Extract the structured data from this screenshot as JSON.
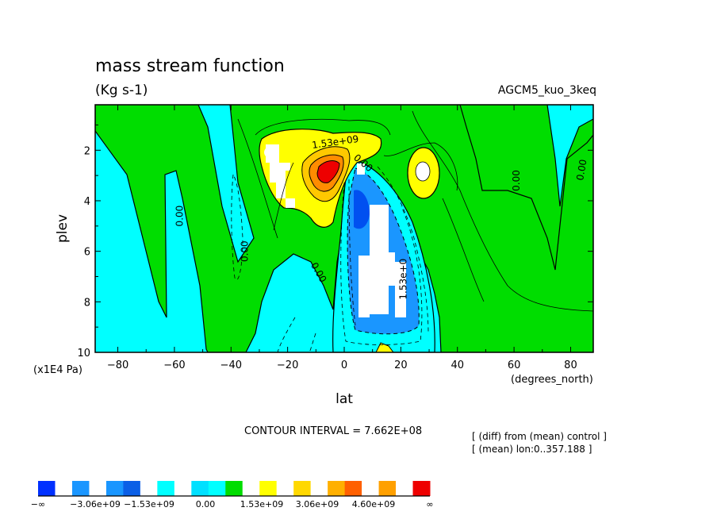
{
  "chart_data": {
    "type": "contour",
    "title": "mass stream function",
    "units": "(Kg s-1)",
    "dataset": "AGCM5_kuo_3keq",
    "xlabel": "lat",
    "xunits": "(degrees_north)",
    "ylabel": "plev",
    "yunits": "(x1E4 Pa)",
    "xlim": [
      -88,
      88
    ],
    "ylim": [
      10,
      0.2
    ],
    "xticks": [
      -80,
      -60,
      -40,
      -20,
      0,
      20,
      40,
      60,
      80
    ],
    "xticklabels": [
      "−80",
      "−60",
      "−40",
      "−20",
      "0",
      "20",
      "40",
      "60",
      "80"
    ],
    "yticks": [
      2,
      4,
      6,
      8,
      10
    ],
    "yticklabels": [
      "2",
      "4",
      "6",
      "8",
      "10"
    ],
    "contour_interval": "CONTOUR INTERVAL = 7.662E+08",
    "notes": [
      "[ (diff) from (mean) control ]",
      "[ (mean) lon:0..357.188 ]"
    ],
    "contour_labels": [
      {
        "text": "1.53e+09",
        "lat": -3,
        "plev": 1.8,
        "angle": -8
      },
      {
        "text": "0.00",
        "lat": 6,
        "plev": 2.6,
        "angle": 40
      },
      {
        "text": "0.00",
        "lat": -57,
        "plev": 4.6,
        "angle": -90
      },
      {
        "text": "0.00",
        "lat": -34,
        "plev": 6.0,
        "angle": -90
      },
      {
        "text": "0.00",
        "lat": -10,
        "plev": 6.9,
        "angle": 60
      },
      {
        "text": "1.53e+0",
        "lat": 22,
        "plev": 7.1,
        "angle": -90
      },
      {
        "text": "0.00",
        "lat": 62,
        "plev": 3.2,
        "angle": -90
      },
      {
        "text": "0.00",
        "lat": 85,
        "plev": 2.8,
        "angle": -80
      }
    ],
    "colorbar": {
      "labels": [
        "−∞",
        "−3.06e+09",
        "−1.53e+09",
        "0.00",
        "1.53e+09",
        "3.06e+09",
        "4.60e+09",
        "∞"
      ],
      "colors": [
        "#0030ff",
        "#ffffff",
        "#1a96ff",
        "#ffffff",
        "#1a96ff",
        "#0b5fe6",
        "#ffffff",
        "#00ffff",
        "#ffffff",
        "#00e0ff",
        "#00ffff",
        "#00dd00",
        "#ffffff",
        "#ffff00",
        "#ffffff",
        "#ffd800",
        "#ffffff",
        "#ffb000",
        "#ff6000",
        "#ffffff",
        "#ffa000",
        "#ffffff",
        "#ee0000"
      ]
    },
    "colors": {
      "cyan": "#00ffff",
      "green": "#00dd00",
      "lightgreen": "#00ee00",
      "yellow": "#ffff00",
      "gold": "#ffc800",
      "orange": "#ff8c00",
      "red": "#ee0000",
      "blue": "#1a96ff",
      "darkblue": "#0050f0"
    }
  }
}
